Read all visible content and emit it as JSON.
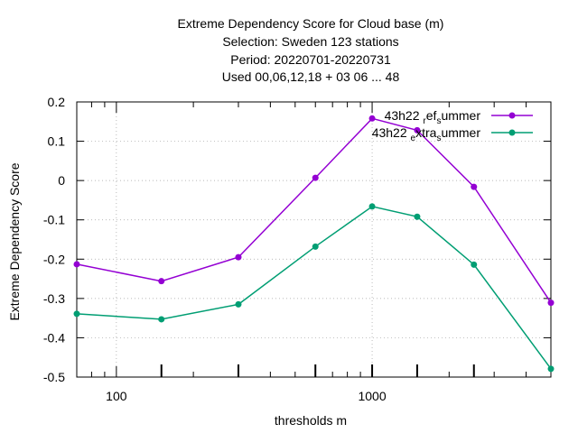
{
  "chart_data": {
    "type": "line",
    "title": [
      "Extreme Dependency Score  for Cloud base (m)",
      "Selection: Sweden    123 stations",
      "Period: 20220701-20220731",
      "Used  00,06,12,18  + 03 06 ... 48"
    ],
    "xlabel": "thresholds m",
    "ylabel": "Extreme Dependency Score",
    "x_scale": "log",
    "xlim": [
      70,
      5000
    ],
    "ylim": [
      -0.5,
      0.2
    ],
    "x_ticks": [
      100,
      1000
    ],
    "x_tick_labels": [
      "100",
      "1000"
    ],
    "y_ticks": [
      -0.5,
      -0.4,
      -0.3,
      -0.2,
      -0.1,
      0,
      0.1,
      0.2
    ],
    "y_tick_labels": [
      "-0.5",
      "-0.4",
      "-0.3",
      "-0.2",
      "-0.1",
      "0",
      "0.1",
      "0.2"
    ],
    "grid": true,
    "legend_position": "top-right",
    "x": [
      70,
      150,
      300,
      600,
      1000,
      1500,
      2500,
      5000
    ],
    "series": [
      {
        "name": "43h22_ref_summer",
        "legend_parts": [
          "43h22",
          "r",
          "ef",
          "s",
          "ummer"
        ],
        "color": "#9400d3",
        "values": [
          -0.213,
          -0.256,
          -0.195,
          0.007,
          0.158,
          0.128,
          -0.016,
          -0.311
        ]
      },
      {
        "name": "43h22_extra_summer",
        "legend_parts": [
          "43h22",
          "e",
          "xtra",
          "s",
          "ummer"
        ],
        "color": "#009e73",
        "values": [
          -0.339,
          -0.353,
          -0.315,
          -0.168,
          -0.066,
          -0.092,
          -0.214,
          -0.479
        ]
      }
    ]
  }
}
